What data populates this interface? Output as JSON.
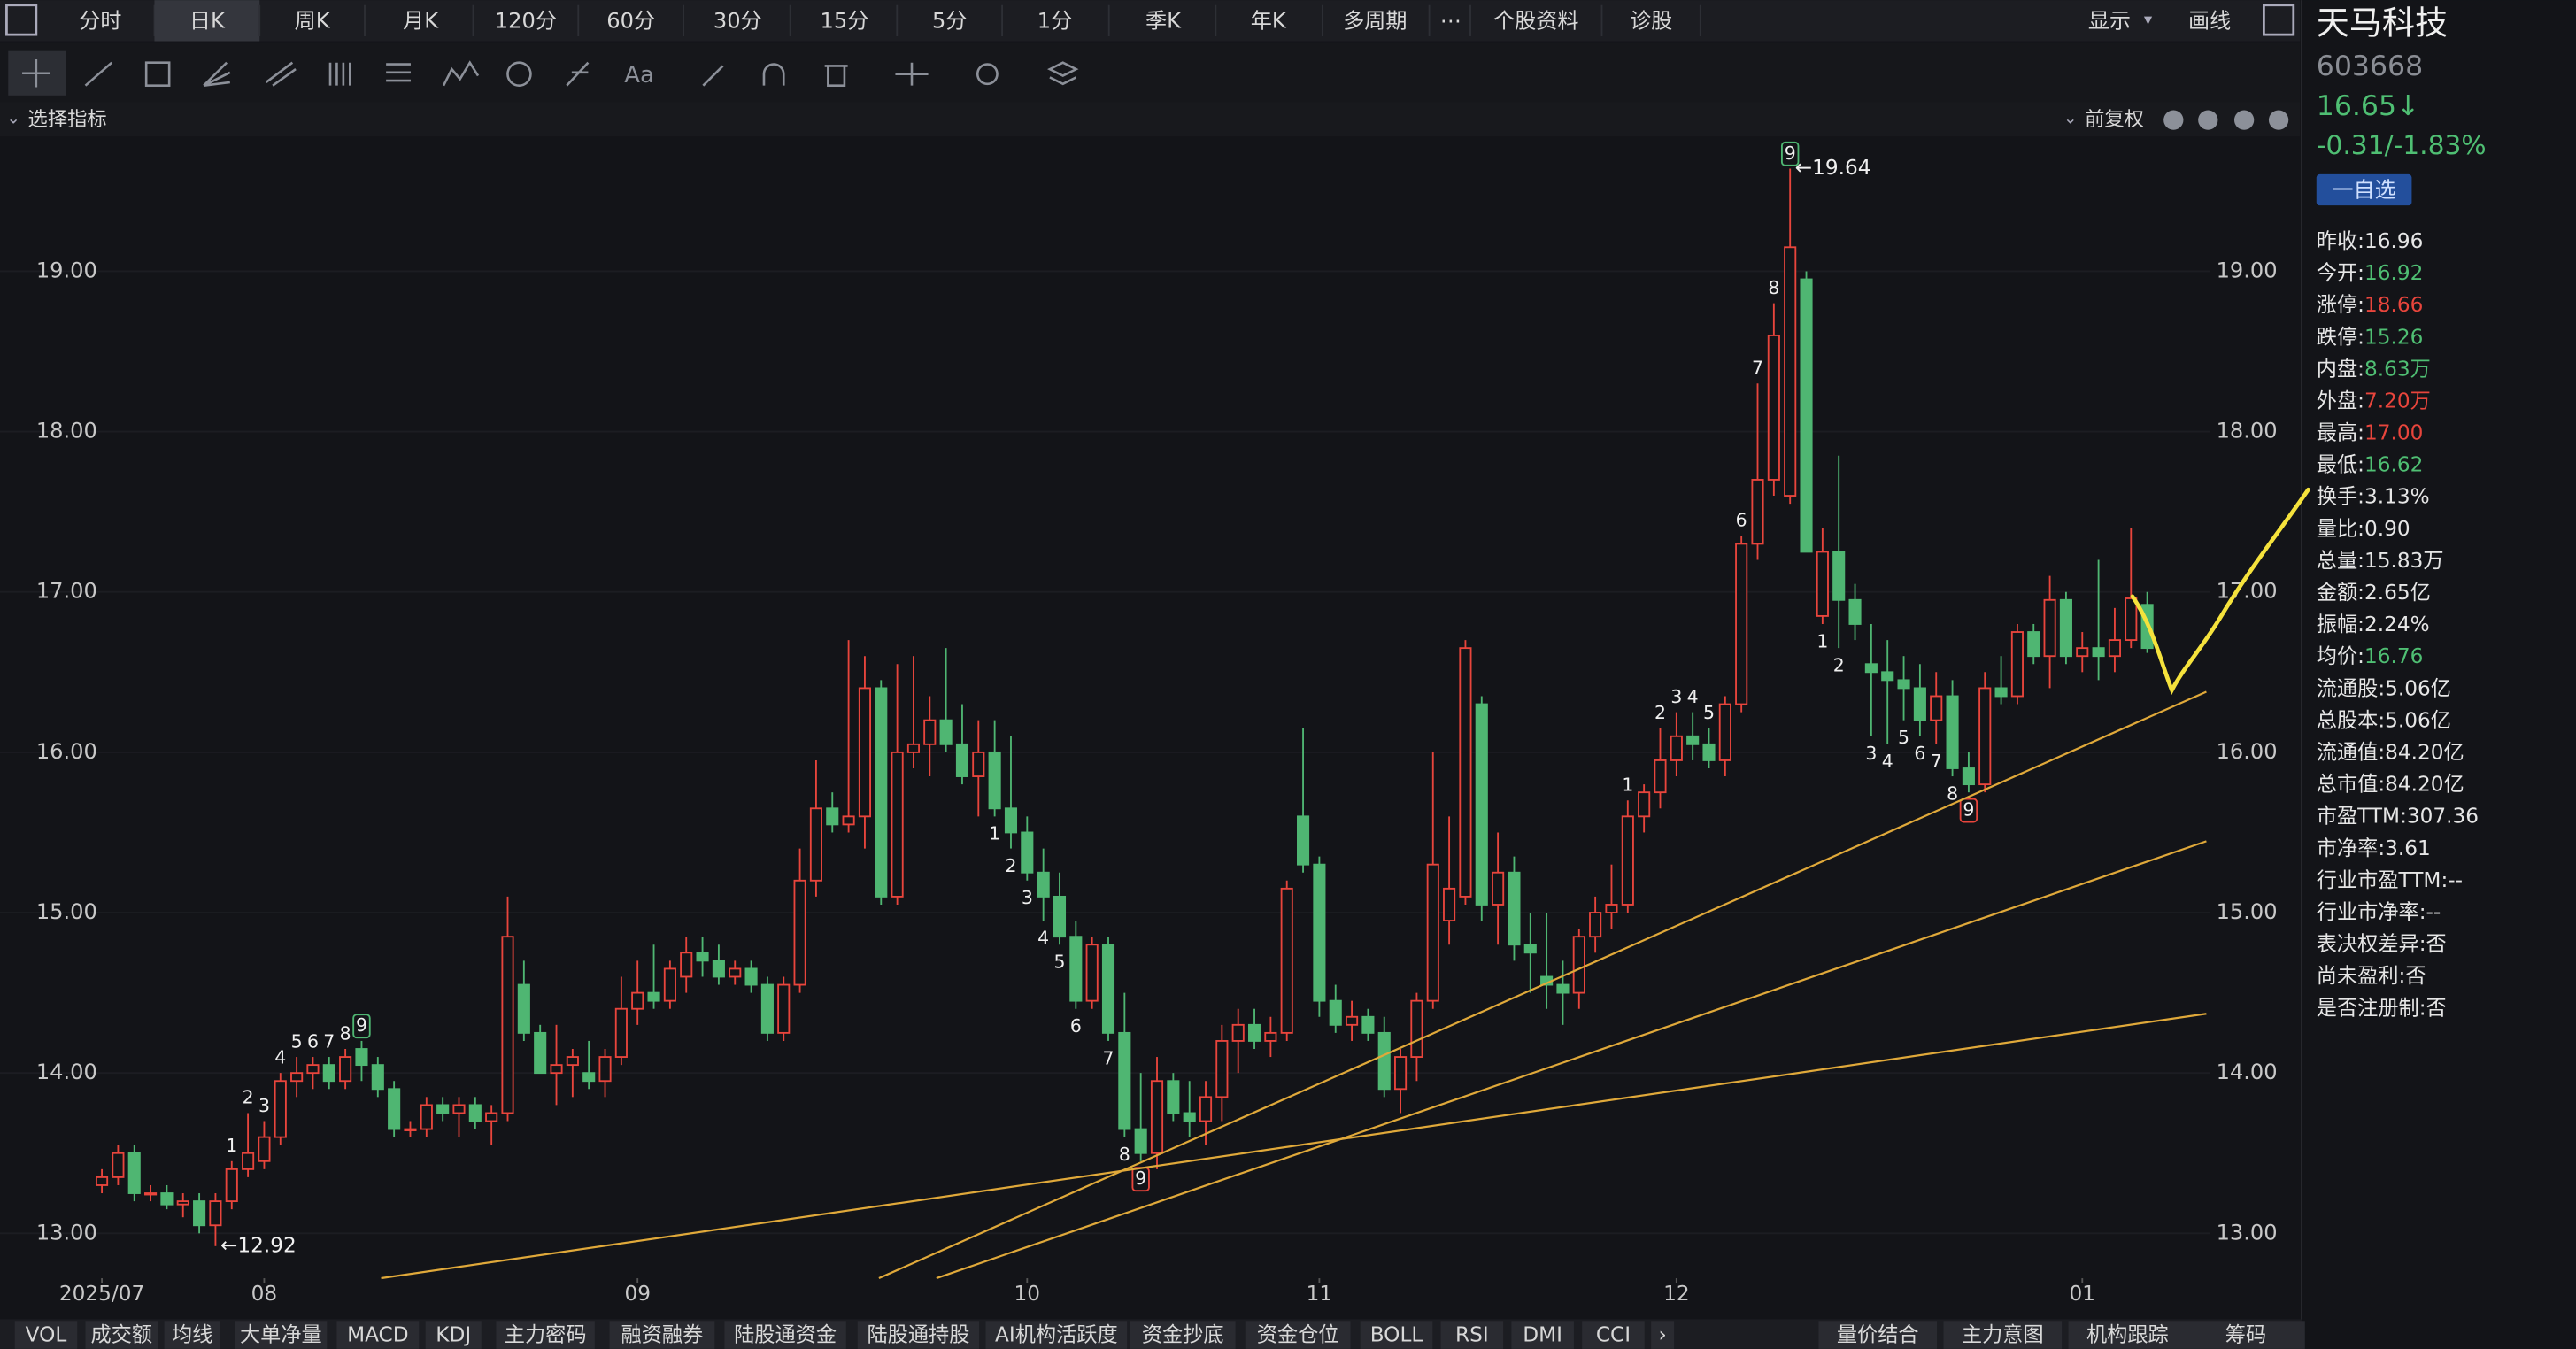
{
  "toolbar": {
    "tabs": [
      "分时",
      "日K",
      "周K",
      "月K",
      "120分",
      "60分",
      "30分",
      "15分",
      "5分",
      "1分",
      "季K",
      "年K",
      "多周期",
      "⋯",
      "个股资料",
      "诊股"
    ],
    "active": 1,
    "right": [
      "显示",
      "画线"
    ]
  },
  "indicator_bar": {
    "left": "选择指标",
    "right": "前复权"
  },
  "quote": {
    "name": "天马科技",
    "code": "603668",
    "price": "16.65↓",
    "change": "-0.31/-1.83%",
    "watchlist": "一自选"
  },
  "stats": [
    {
      "label": "昨收:",
      "value": "16.96",
      "color": "#e6e6e6"
    },
    {
      "label": "今开:",
      "value": "16.92",
      "color": "#4fbf73"
    },
    {
      "label": "涨停:",
      "value": "18.66",
      "color": "#e8453c"
    },
    {
      "label": "跌停:",
      "value": "15.26",
      "color": "#4fbf73"
    },
    {
      "label": "内盘:",
      "value": "8.63万",
      "color": "#4fbf73"
    },
    {
      "label": "外盘:",
      "value": "7.20万",
      "color": "#e8453c"
    },
    {
      "label": "最高:",
      "value": "17.00",
      "color": "#e8453c"
    },
    {
      "label": "最低:",
      "value": "16.62",
      "color": "#4fbf73"
    },
    {
      "label": "换手:",
      "value": "3.13%",
      "color": "#e6e6e6"
    },
    {
      "label": "量比:",
      "value": "0.90",
      "color": "#e6e6e6"
    },
    {
      "label": "总量:",
      "value": "15.83万",
      "color": "#e6e6e6"
    },
    {
      "label": "金额:",
      "value": "2.65亿",
      "color": "#e6e6e6"
    },
    {
      "label": "振幅:",
      "value": "2.24%",
      "color": "#e6e6e6"
    },
    {
      "label": "均价:",
      "value": "16.76",
      "color": "#4fbf73"
    },
    {
      "label": "流通股:",
      "value": "5.06亿",
      "color": "#e6e6e6"
    },
    {
      "label": "总股本:",
      "value": "5.06亿",
      "color": "#e6e6e6"
    },
    {
      "label": "流通值:",
      "value": "84.20亿",
      "color": "#e6e6e6"
    },
    {
      "label": "总市值:",
      "value": "84.20亿",
      "color": "#e6e6e6"
    },
    {
      "label": "市盈TTM:",
      "value": "307.36",
      "color": "#e6e6e6"
    },
    {
      "label": "市净率:",
      "value": "3.61",
      "color": "#e6e6e6"
    },
    {
      "label": "行业市盈TTM:",
      "value": "--",
      "color": "#e6e6e6"
    },
    {
      "label": "行业市净率:",
      "value": "--",
      "color": "#e6e6e6"
    },
    {
      "label": "表决权差异:",
      "value": "否",
      "color": "#e6e6e6"
    },
    {
      "label": "尚未盈利:",
      "value": "否",
      "color": "#e6e6e6"
    },
    {
      "label": "是否注册制:",
      "value": "否",
      "color": "#e6e6e6"
    }
  ],
  "bottom_tabs": {
    "left": [
      "VOL",
      "成交额",
      "均线",
      "大单净量",
      "MACD",
      "KDJ",
      "主力密码",
      "融资融券",
      "陆股通资金",
      "陆股通持股",
      "AI机构活跃度",
      "资金抄底",
      "资金仓位",
      "BOLL",
      "RSI",
      "DMI",
      "CCI",
      "›"
    ],
    "right": [
      "量价结合",
      "主力意图",
      "机构跟踪",
      "筹码"
    ]
  },
  "chart_data": {
    "type": "candlestick",
    "up_color": "#e8453c",
    "down_color": "#4fb672",
    "ylim": [
      12.72,
      19.82
    ],
    "yticks": [
      {
        "value": 13,
        "label": "13.00"
      },
      {
        "value": 14,
        "label": "14.00"
      },
      {
        "value": 15,
        "label": "15.00"
      },
      {
        "value": 16,
        "label": "16.00"
      },
      {
        "value": 17,
        "label": "17.00"
      },
      {
        "value": 18,
        "label": "18.00"
      },
      {
        "value": 19,
        "label": "19.00"
      }
    ],
    "xlim": [
      0,
      126
    ],
    "xticks": [
      {
        "value": 0,
        "label": "2025/07"
      },
      {
        "value": 10,
        "label": "08"
      },
      {
        "value": 33,
        "label": "09"
      },
      {
        "value": 57,
        "label": "10"
      },
      {
        "value": 75,
        "label": "11"
      },
      {
        "value": 97,
        "label": "12"
      },
      {
        "value": 122,
        "label": "01"
      }
    ],
    "candles": [
      [
        13.3,
        13.4,
        13.25,
        13.35
      ],
      [
        13.35,
        13.55,
        13.3,
        13.5
      ],
      [
        13.5,
        13.55,
        13.2,
        13.25
      ],
      [
        13.25,
        13.3,
        13.2,
        13.25
      ],
      [
        13.25,
        13.3,
        13.15,
        13.18
      ],
      [
        13.18,
        13.25,
        13.1,
        13.2
      ],
      [
        13.2,
        13.25,
        13.0,
        13.05
      ],
      [
        13.05,
        13.25,
        12.92,
        13.2
      ],
      [
        13.2,
        13.45,
        13.15,
        13.4
      ],
      [
        13.4,
        13.75,
        13.35,
        13.5
      ],
      [
        13.45,
        13.7,
        13.4,
        13.6
      ],
      [
        13.6,
        14.0,
        13.55,
        13.95
      ],
      [
        13.95,
        14.1,
        13.85,
        14.0
      ],
      [
        14.0,
        14.1,
        13.9,
        14.05
      ],
      [
        14.05,
        14.1,
        13.9,
        13.95
      ],
      [
        13.95,
        14.15,
        13.9,
        14.1
      ],
      [
        14.15,
        14.2,
        13.95,
        14.05
      ],
      [
        14.05,
        14.1,
        13.85,
        13.9
      ],
      [
        13.9,
        13.95,
        13.6,
        13.65
      ],
      [
        13.65,
        13.7,
        13.6,
        13.65
      ],
      [
        13.65,
        13.85,
        13.6,
        13.8
      ],
      [
        13.8,
        13.85,
        13.7,
        13.75
      ],
      [
        13.75,
        13.85,
        13.6,
        13.8
      ],
      [
        13.8,
        13.85,
        13.65,
        13.7
      ],
      [
        13.7,
        13.8,
        13.55,
        13.75
      ],
      [
        13.75,
        15.1,
        13.7,
        14.85
      ],
      [
        14.55,
        14.7,
        14.2,
        14.25
      ],
      [
        14.25,
        14.3,
        14.0,
        14.0
      ],
      [
        14.0,
        14.3,
        13.8,
        14.05
      ],
      [
        14.05,
        14.15,
        13.85,
        14.1
      ],
      [
        14.0,
        14.2,
        13.9,
        13.95
      ],
      [
        13.95,
        14.15,
        13.85,
        14.1
      ],
      [
        14.1,
        14.6,
        14.05,
        14.4
      ],
      [
        14.4,
        14.7,
        14.3,
        14.5
      ],
      [
        14.5,
        14.8,
        14.4,
        14.45
      ],
      [
        14.45,
        14.7,
        14.4,
        14.65
      ],
      [
        14.6,
        14.85,
        14.5,
        14.75
      ],
      [
        14.75,
        14.85,
        14.6,
        14.7
      ],
      [
        14.7,
        14.8,
        14.55,
        14.6
      ],
      [
        14.6,
        14.7,
        14.55,
        14.65
      ],
      [
        14.65,
        14.7,
        14.5,
        14.55
      ],
      [
        14.55,
        14.6,
        14.2,
        14.25
      ],
      [
        14.25,
        14.6,
        14.2,
        14.55
      ],
      [
        14.55,
        15.4,
        14.5,
        15.2
      ],
      [
        15.2,
        15.95,
        15.1,
        15.65
      ],
      [
        15.65,
        15.75,
        15.5,
        15.55
      ],
      [
        15.55,
        16.7,
        15.5,
        15.6
      ],
      [
        15.6,
        16.6,
        15.4,
        16.4
      ],
      [
        16.4,
        16.45,
        15.05,
        15.1
      ],
      [
        15.1,
        16.55,
        15.05,
        16.0
      ],
      [
        16.0,
        16.6,
        15.9,
        16.05
      ],
      [
        16.05,
        16.35,
        15.85,
        16.2
      ],
      [
        16.2,
        16.65,
        16.0,
        16.05
      ],
      [
        16.05,
        16.3,
        15.8,
        15.85
      ],
      [
        15.85,
        16.2,
        15.6,
        16.0
      ],
      [
        16.0,
        16.2,
        15.6,
        15.65
      ],
      [
        15.65,
        16.1,
        15.4,
        15.5
      ],
      [
        15.5,
        15.6,
        15.2,
        15.25
      ],
      [
        15.25,
        15.4,
        14.95,
        15.1
      ],
      [
        15.1,
        15.25,
        14.8,
        14.85
      ],
      [
        14.85,
        14.95,
        14.4,
        14.45
      ],
      [
        14.45,
        14.85,
        14.4,
        14.8
      ],
      [
        14.8,
        14.85,
        14.2,
        14.25
      ],
      [
        14.25,
        14.5,
        13.6,
        13.65
      ],
      [
        13.65,
        14.0,
        13.45,
        13.5
      ],
      [
        13.5,
        14.1,
        13.4,
        13.95
      ],
      [
        13.95,
        14.0,
        13.7,
        13.75
      ],
      [
        13.75,
        13.95,
        13.6,
        13.7
      ],
      [
        13.7,
        13.95,
        13.55,
        13.85
      ],
      [
        13.85,
        14.3,
        13.7,
        14.2
      ],
      [
        14.2,
        14.4,
        14.0,
        14.3
      ],
      [
        14.3,
        14.4,
        14.15,
        14.2
      ],
      [
        14.2,
        14.35,
        14.1,
        14.25
      ],
      [
        14.25,
        15.2,
        14.2,
        15.15
      ],
      [
        15.6,
        16.15,
        15.25,
        15.3
      ],
      [
        15.3,
        15.35,
        14.35,
        14.45
      ],
      [
        14.45,
        14.55,
        14.25,
        14.3
      ],
      [
        14.3,
        14.45,
        14.2,
        14.35
      ],
      [
        14.35,
        14.4,
        14.2,
        14.25
      ],
      [
        14.25,
        14.35,
        13.85,
        13.9
      ],
      [
        13.9,
        14.15,
        13.75,
        14.1
      ],
      [
        14.1,
        14.5,
        13.95,
        14.45
      ],
      [
        14.45,
        16.0,
        14.4,
        15.3
      ],
      [
        14.95,
        15.6,
        14.8,
        15.15
      ],
      [
        15.1,
        16.7,
        15.05,
        16.65
      ],
      [
        16.3,
        16.35,
        14.95,
        15.05
      ],
      [
        15.05,
        15.5,
        14.8,
        15.25
      ],
      [
        15.25,
        15.35,
        14.7,
        14.8
      ],
      [
        14.8,
        15.0,
        14.5,
        14.75
      ],
      [
        14.6,
        15.0,
        14.4,
        14.55
      ],
      [
        14.55,
        14.7,
        14.3,
        14.5
      ],
      [
        14.5,
        14.9,
        14.4,
        14.85
      ],
      [
        14.85,
        15.1,
        14.75,
        15.0
      ],
      [
        15.0,
        15.3,
        14.9,
        15.05
      ],
      [
        15.05,
        15.7,
        15.0,
        15.6
      ],
      [
        15.6,
        15.8,
        15.5,
        15.75
      ],
      [
        15.75,
        16.15,
        15.65,
        15.95
      ],
      [
        15.95,
        16.25,
        15.85,
        16.1
      ],
      [
        16.1,
        16.25,
        15.95,
        16.05
      ],
      [
        16.05,
        16.15,
        15.9,
        15.95
      ],
      [
        15.95,
        16.35,
        15.85,
        16.3
      ],
      [
        16.3,
        17.35,
        16.25,
        17.3
      ],
      [
        17.3,
        18.3,
        17.2,
        17.7
      ],
      [
        17.7,
        18.8,
        17.6,
        18.6
      ],
      [
        17.6,
        19.64,
        17.55,
        19.15
      ],
      [
        18.95,
        19.0,
        17.25,
        17.25
      ],
      [
        16.85,
        17.4,
        16.8,
        17.25
      ],
      [
        17.25,
        17.85,
        16.65,
        16.95
      ],
      [
        16.95,
        17.05,
        16.7,
        16.8
      ],
      [
        16.55,
        16.8,
        16.1,
        16.5
      ],
      [
        16.5,
        16.7,
        16.05,
        16.45
      ],
      [
        16.45,
        16.6,
        16.2,
        16.4
      ],
      [
        16.4,
        16.55,
        16.1,
        16.2
      ],
      [
        16.2,
        16.5,
        16.05,
        16.35
      ],
      [
        16.35,
        16.45,
        15.85,
        15.9
      ],
      [
        15.9,
        16.0,
        15.75,
        15.8
      ],
      [
        15.8,
        16.5,
        15.75,
        16.4
      ],
      [
        16.4,
        16.6,
        16.3,
        16.35
      ],
      [
        16.35,
        16.8,
        16.3,
        16.75
      ],
      [
        16.75,
        16.8,
        16.55,
        16.6
      ],
      [
        16.6,
        17.1,
        16.4,
        16.95
      ],
      [
        16.95,
        17.0,
        16.55,
        16.6
      ],
      [
        16.6,
        16.75,
        16.5,
        16.65
      ],
      [
        16.65,
        17.2,
        16.45,
        16.6
      ],
      [
        16.6,
        16.9,
        16.5,
        16.7
      ],
      [
        16.7,
        17.4,
        16.65,
        16.96
      ],
      [
        16.92,
        17.0,
        16.62,
        16.65
      ]
    ],
    "annotations": [
      {
        "text": "1",
        "index": 8,
        "position": "above"
      },
      {
        "text": "2",
        "index": 9,
        "position": "above"
      },
      {
        "text": "3",
        "index": 10,
        "position": "above"
      },
      {
        "text": "4",
        "index": 11,
        "position": "above"
      },
      {
        "text": "5",
        "index": 12,
        "position": "above"
      },
      {
        "text": "6",
        "index": 13,
        "position": "above"
      },
      {
        "text": "7",
        "index": 14,
        "position": "above"
      },
      {
        "text": "8",
        "index": 15,
        "position": "above"
      },
      {
        "text": "9",
        "index": 16,
        "position": "above"
      },
      {
        "text": "1",
        "index": 55,
        "position": "below"
      },
      {
        "text": "2",
        "index": 56,
        "position": "below"
      },
      {
        "text": "3",
        "index": 57,
        "position": "below"
      },
      {
        "text": "4",
        "index": 58,
        "position": "below"
      },
      {
        "text": "5",
        "index": 59,
        "position": "below"
      },
      {
        "text": "6",
        "index": 60,
        "position": "below"
      },
      {
        "text": "7",
        "index": 62,
        "position": "below"
      },
      {
        "text": "8",
        "index": 63,
        "position": "below"
      },
      {
        "text": "9",
        "index": 64,
        "position": "below"
      },
      {
        "text": "1",
        "index": 94,
        "position": "above"
      },
      {
        "text": "2",
        "index": 96,
        "position": "above"
      },
      {
        "text": "3",
        "index": 97,
        "position": "above"
      },
      {
        "text": "4",
        "index": 98,
        "position": "above"
      },
      {
        "text": "5",
        "index": 99,
        "position": "above"
      },
      {
        "text": "6",
        "index": 101,
        "position": "above"
      },
      {
        "text": "7",
        "index": 102,
        "position": "above"
      },
      {
        "text": "8",
        "index": 103,
        "position": "above"
      },
      {
        "text": "9",
        "index": 104,
        "position": "above"
      },
      {
        "text": "1",
        "index": 106,
        "position": "below"
      },
      {
        "text": "2",
        "index": 107,
        "position": "below"
      },
      {
        "text": "3",
        "index": 109,
        "position": "below"
      },
      {
        "text": "4",
        "index": 110,
        "position": "below"
      },
      {
        "text": "5",
        "index": 111,
        "position": "below"
      },
      {
        "text": "6",
        "index": 112,
        "position": "below"
      },
      {
        "text": "7",
        "index": 113,
        "position": "below"
      },
      {
        "text": "8",
        "index": 114,
        "position": "below"
      },
      {
        "text": "9",
        "index": 115,
        "position": "below"
      }
    ],
    "extremes": [
      {
        "index": 104,
        "text": "←19.64",
        "position": "high"
      },
      {
        "index": 7,
        "text": "←12.92",
        "position": "low"
      }
    ]
  }
}
